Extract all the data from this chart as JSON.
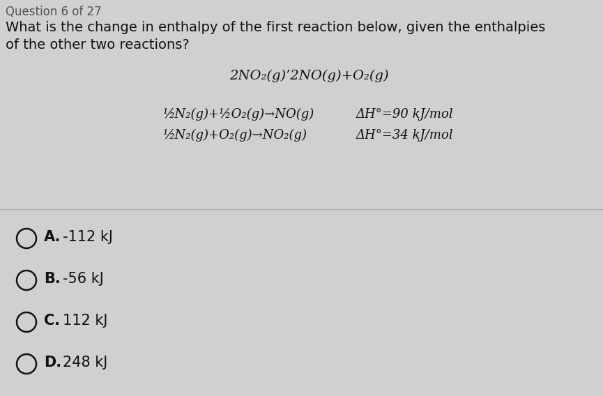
{
  "bg_color": "#d0d0d0",
  "header_text": "Question 6 of 27",
  "question_line1": "What is the change in enthalpy of the first reaction below, given the enthalpies",
  "question_line2": "of the other two reactions?",
  "reaction_main": "2NO₂(g)’2NO(g)+O₂(g)",
  "reaction1_lhs": "½N₂(g)+½O₂(g)→NO(g)",
  "reaction1_rhs": "ΔH°=90 kJ/mol",
  "reaction2_lhs": "½N₂(g)+O₂(g)→NO₂(g)",
  "reaction2_rhs": "ΔH°=34 kJ/mol",
  "choices": [
    {
      "label": "A.",
      "text": "-112 kJ"
    },
    {
      "label": "B.",
      "text": "-56 kJ"
    },
    {
      "label": "C.",
      "text": "112 kJ"
    },
    {
      "label": "D.",
      "text": "248 kJ"
    }
  ],
  "text_color": "#111111",
  "divider_color": "#b0b0b0",
  "font_size_question": 14,
  "font_size_header": 12,
  "font_size_reaction_main": 14,
  "font_size_reaction_sub": 13,
  "font_size_choices": 15
}
